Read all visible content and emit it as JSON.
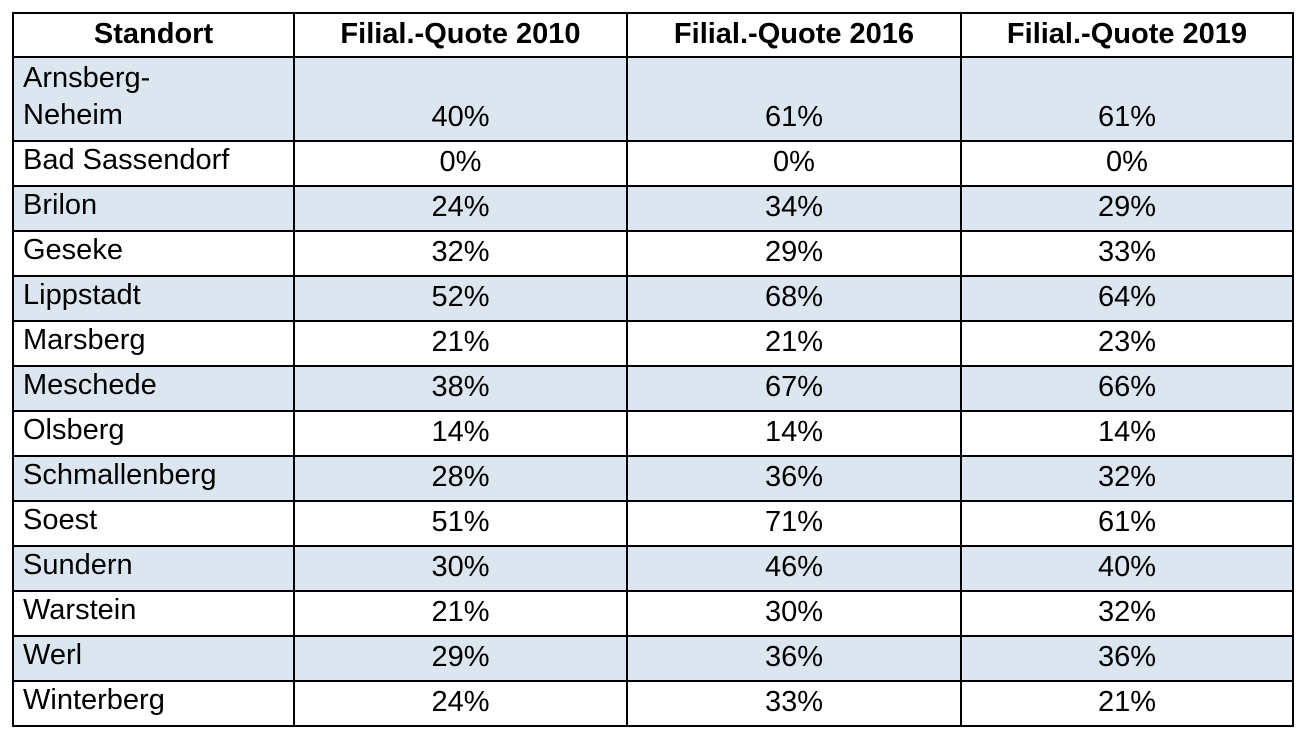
{
  "table": {
    "header": [
      "Standort",
      "Filial.-Quote 2010",
      "Filial.-Quote 2016",
      "Filial.-Quote 2019"
    ],
    "rows": [
      {
        "standort": "Arnsberg-\nNeheim",
        "q2010": "40%",
        "q2016": "61%",
        "q2019": "61%"
      },
      {
        "standort": "Bad Sassendorf",
        "q2010": "0%",
        "q2016": "0%",
        "q2019": "0%"
      },
      {
        "standort": "Brilon",
        "q2010": "24%",
        "q2016": "34%",
        "q2019": "29%"
      },
      {
        "standort": "Geseke",
        "q2010": "32%",
        "q2016": "29%",
        "q2019": "33%"
      },
      {
        "standort": "Lippstadt",
        "q2010": "52%",
        "q2016": "68%",
        "q2019": "64%"
      },
      {
        "standort": "Marsberg",
        "q2010": "21%",
        "q2016": "21%",
        "q2019": "23%"
      },
      {
        "standort": "Meschede",
        "q2010": "38%",
        "q2016": "67%",
        "q2019": "66%"
      },
      {
        "standort": "Olsberg",
        "q2010": "14%",
        "q2016": "14%",
        "q2019": "14%"
      },
      {
        "standort": "Schmallenberg",
        "q2010": "28%",
        "q2016": "36%",
        "q2019": "32%"
      },
      {
        "standort": "Soest",
        "q2010": "51%",
        "q2016": "71%",
        "q2019": "61%"
      },
      {
        "standort": "Sundern",
        "q2010": "30%",
        "q2016": "46%",
        "q2019": "40%"
      },
      {
        "standort": "Warstein",
        "q2010": "21%",
        "q2016": "30%",
        "q2019": "32%"
      },
      {
        "standort": "Werl",
        "q2010": "29%",
        "q2016": "36%",
        "q2019": "36%"
      },
      {
        "standort": "Winterberg",
        "q2010": "24%",
        "q2016": "33%",
        "q2019": "21%"
      }
    ]
  },
  "colors": {
    "stripe_fill": "#dce6f1",
    "grid_border": "#000000",
    "background": "#ffffff",
    "text": "#000000"
  }
}
